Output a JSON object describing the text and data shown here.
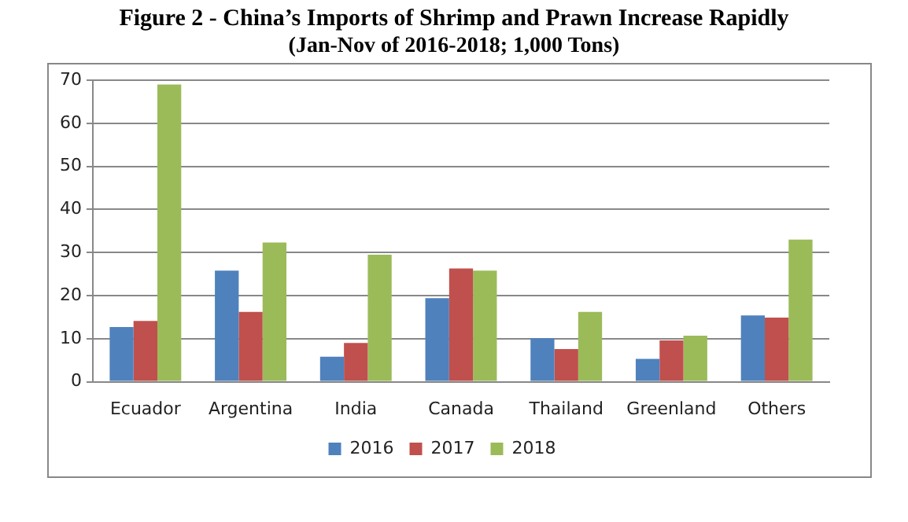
{
  "chart_data": {
    "type": "bar",
    "title": "Figure 2 - China’s Imports of Shrimp and Prawn Increase Rapidly",
    "subtitle": "(Jan-Nov of 2016-2018; 1,000 Tons)",
    "categories": [
      "Ecuador",
      "Argentina",
      "India",
      "Canada",
      "Thailand",
      "Greenland",
      "Others"
    ],
    "series": [
      {
        "name": "2016",
        "color": "#4f81bd",
        "values": [
          12.7,
          25.8,
          5.8,
          19.4,
          10.1,
          5.3,
          15.4
        ]
      },
      {
        "name": "2017",
        "color": "#c0504d",
        "values": [
          14.1,
          16.2,
          9.0,
          26.3,
          7.6,
          9.6,
          14.9
        ]
      },
      {
        "name": "2018",
        "color": "#9bbb59",
        "values": [
          69,
          32.3,
          29.5,
          25.8,
          16.2,
          10.7,
          33.0
        ]
      }
    ],
    "ylim": [
      0,
      70
    ],
    "yticks": [
      0,
      10,
      20,
      30,
      40,
      50,
      60,
      70
    ],
    "grid": "y",
    "legend": "bottom"
  }
}
